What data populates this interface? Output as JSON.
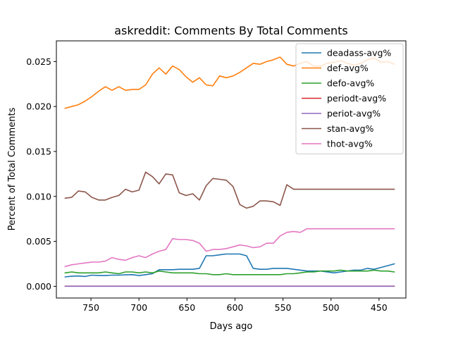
{
  "chart_data": {
    "type": "line",
    "title": "askreddit: Comments By Total Comments",
    "xlabel": "Days ago",
    "ylabel": "Percent of Total Comments",
    "x_axis_inverted": true,
    "xlim": [
      786,
      422
    ],
    "ylim": [
      -0.0013,
      0.0273
    ],
    "x_ticks": [
      750,
      700,
      650,
      600,
      550,
      500,
      450
    ],
    "x_tick_labels": [
      "750",
      "700",
      "650",
      "600",
      "550",
      "500",
      "450"
    ],
    "y_ticks": [
      0.0,
      0.005,
      0.01,
      0.015,
      0.02,
      0.025
    ],
    "y_tick_labels": [
      "0.000",
      "0.005",
      "0.010",
      "0.015",
      "0.020",
      "0.025"
    ],
    "grid": false,
    "legend_position": "top-right",
    "x": [
      777,
      770,
      763,
      756,
      749,
      742,
      735,
      728,
      721,
      714,
      707,
      700,
      693,
      686,
      679,
      672,
      665,
      658,
      651,
      644,
      637,
      630,
      623,
      616,
      609,
      602,
      595,
      588,
      581,
      574,
      567,
      560,
      553,
      546,
      539,
      532,
      525,
      518,
      511,
      504,
      497,
      490,
      483,
      476,
      469,
      462,
      455,
      448,
      441,
      434
    ],
    "series": [
      {
        "name": "deadass-avg%",
        "color": "#1f77b4",
        "values": [
          0.00105,
          0.00112,
          0.00115,
          0.0011,
          0.00125,
          0.0012,
          0.0012,
          0.00125,
          0.00125,
          0.00128,
          0.0013,
          0.0012,
          0.0013,
          0.0014,
          0.00185,
          0.00185,
          0.00185,
          0.0019,
          0.0019,
          0.0019,
          0.002,
          0.0034,
          0.0034,
          0.0035,
          0.0036,
          0.0036,
          0.0036,
          0.0034,
          0.002,
          0.0019,
          0.0019,
          0.002,
          0.002,
          0.002,
          0.0019,
          0.0018,
          0.0017,
          0.0017,
          0.0017,
          0.0016,
          0.0015,
          0.0016,
          0.0017,
          0.0018,
          0.0018,
          0.002,
          0.0019,
          0.0021,
          0.0023,
          0.0025
        ]
      },
      {
        "name": "def-avg%",
        "color": "#ff7f0e",
        "values": [
          0.0198,
          0.02,
          0.0202,
          0.0206,
          0.0211,
          0.0217,
          0.0222,
          0.0218,
          0.0222,
          0.0218,
          0.0219,
          0.0219,
          0.0224,
          0.0236,
          0.0243,
          0.0236,
          0.0245,
          0.0241,
          0.0233,
          0.0227,
          0.0232,
          0.0224,
          0.0223,
          0.0234,
          0.0232,
          0.0234,
          0.0238,
          0.0243,
          0.0248,
          0.0247,
          0.025,
          0.0252,
          0.0255,
          0.0247,
          0.0245,
          0.0248,
          0.025,
          0.0245,
          0.0245,
          0.0248,
          0.0249,
          0.0251,
          0.0248,
          0.0246,
          0.0248,
          0.0252,
          0.0254,
          0.0249,
          0.025,
          0.0247
        ]
      },
      {
        "name": "defo-avg%",
        "color": "#2ca02c",
        "values": [
          0.0015,
          0.0016,
          0.0015,
          0.0015,
          0.0015,
          0.0015,
          0.0016,
          0.0015,
          0.0014,
          0.0016,
          0.0016,
          0.0015,
          0.0016,
          0.0015,
          0.0017,
          0.0016,
          0.0015,
          0.0015,
          0.0015,
          0.0015,
          0.0014,
          0.0014,
          0.0013,
          0.0013,
          0.0014,
          0.0013,
          0.0013,
          0.0013,
          0.0013,
          0.0013,
          0.0013,
          0.0013,
          0.0013,
          0.0014,
          0.0014,
          0.0015,
          0.0016,
          0.0016,
          0.0017,
          0.0017,
          0.0017,
          0.0018,
          0.0017,
          0.0017,
          0.0017,
          0.0017,
          0.0018,
          0.0017,
          0.0017,
          0.0016
        ]
      },
      {
        "name": "periodt-avg%",
        "color": "#d62728",
        "values": [
          2e-05,
          2e-05,
          2e-05,
          2e-05,
          2e-05,
          2e-05,
          2e-05,
          2e-05,
          2e-05,
          2e-05,
          2e-05,
          2e-05,
          2e-05,
          2e-05,
          2e-05,
          2e-05,
          2e-05,
          2e-05,
          2e-05,
          2e-05,
          2e-05,
          2e-05,
          2e-05,
          2e-05,
          2e-05,
          2e-05,
          2e-05,
          2e-05,
          2e-05,
          2e-05,
          2e-05,
          2e-05,
          2e-05,
          2e-05,
          2e-05,
          2e-05,
          2e-05,
          2e-05,
          2e-05,
          2e-05,
          2e-05,
          2e-05,
          2e-05,
          2e-05,
          2e-05,
          2e-05,
          2e-05,
          2e-05,
          2e-05,
          2e-05
        ]
      },
      {
        "name": "periot-avg%",
        "color": "#9467bd",
        "values": [
          1e-05,
          1e-05,
          1e-05,
          1e-05,
          1e-05,
          1e-05,
          1e-05,
          1e-05,
          1e-05,
          1e-05,
          1e-05,
          1e-05,
          1e-05,
          1e-05,
          1e-05,
          1e-05,
          1e-05,
          1e-05,
          1e-05,
          1e-05,
          1e-05,
          1e-05,
          1e-05,
          1e-05,
          1e-05,
          1e-05,
          1e-05,
          1e-05,
          1e-05,
          1e-05,
          1e-05,
          1e-05,
          1e-05,
          1e-05,
          1e-05,
          1e-05,
          1e-05,
          1e-05,
          1e-05,
          1e-05,
          1e-05,
          1e-05,
          1e-05,
          1e-05,
          1e-05,
          1e-05,
          1e-05,
          1e-05,
          1e-05,
          1e-05
        ]
      },
      {
        "name": "stan-avg%",
        "color": "#8c564b",
        "values": [
          0.0098,
          0.0099,
          0.0106,
          0.0105,
          0.0099,
          0.0096,
          0.0096,
          0.0099,
          0.0101,
          0.0108,
          0.0105,
          0.0107,
          0.0127,
          0.0122,
          0.0114,
          0.0125,
          0.0124,
          0.0104,
          0.0101,
          0.0103,
          0.0096,
          0.0112,
          0.012,
          0.0119,
          0.0118,
          0.0111,
          0.0091,
          0.0087,
          0.0089,
          0.0095,
          0.0095,
          0.0094,
          0.009,
          0.0113,
          0.0108,
          0.0108,
          0.0108,
          0.0108,
          0.0108,
          0.0108,
          0.0108,
          0.0108,
          0.0108,
          0.0108,
          0.0108,
          0.0108,
          0.0108,
          0.0108,
          0.0108,
          0.0108
        ]
      },
      {
        "name": "thot-avg%",
        "color": "#e377c2",
        "values": [
          0.0022,
          0.0024,
          0.0025,
          0.0026,
          0.0027,
          0.0027,
          0.0028,
          0.0032,
          0.003,
          0.0029,
          0.0032,
          0.0034,
          0.0032,
          0.0036,
          0.0039,
          0.0041,
          0.0053,
          0.0052,
          0.0052,
          0.0051,
          0.0048,
          0.0039,
          0.0041,
          0.0041,
          0.0042,
          0.0044,
          0.0046,
          0.0045,
          0.0043,
          0.0044,
          0.0048,
          0.0048,
          0.0056,
          0.006,
          0.0061,
          0.006,
          0.0064,
          0.0064,
          0.0064,
          0.0064,
          0.0064,
          0.0064,
          0.0064,
          0.0064,
          0.0064,
          0.0064,
          0.0064,
          0.0064,
          0.0064,
          0.0064
        ]
      }
    ]
  }
}
